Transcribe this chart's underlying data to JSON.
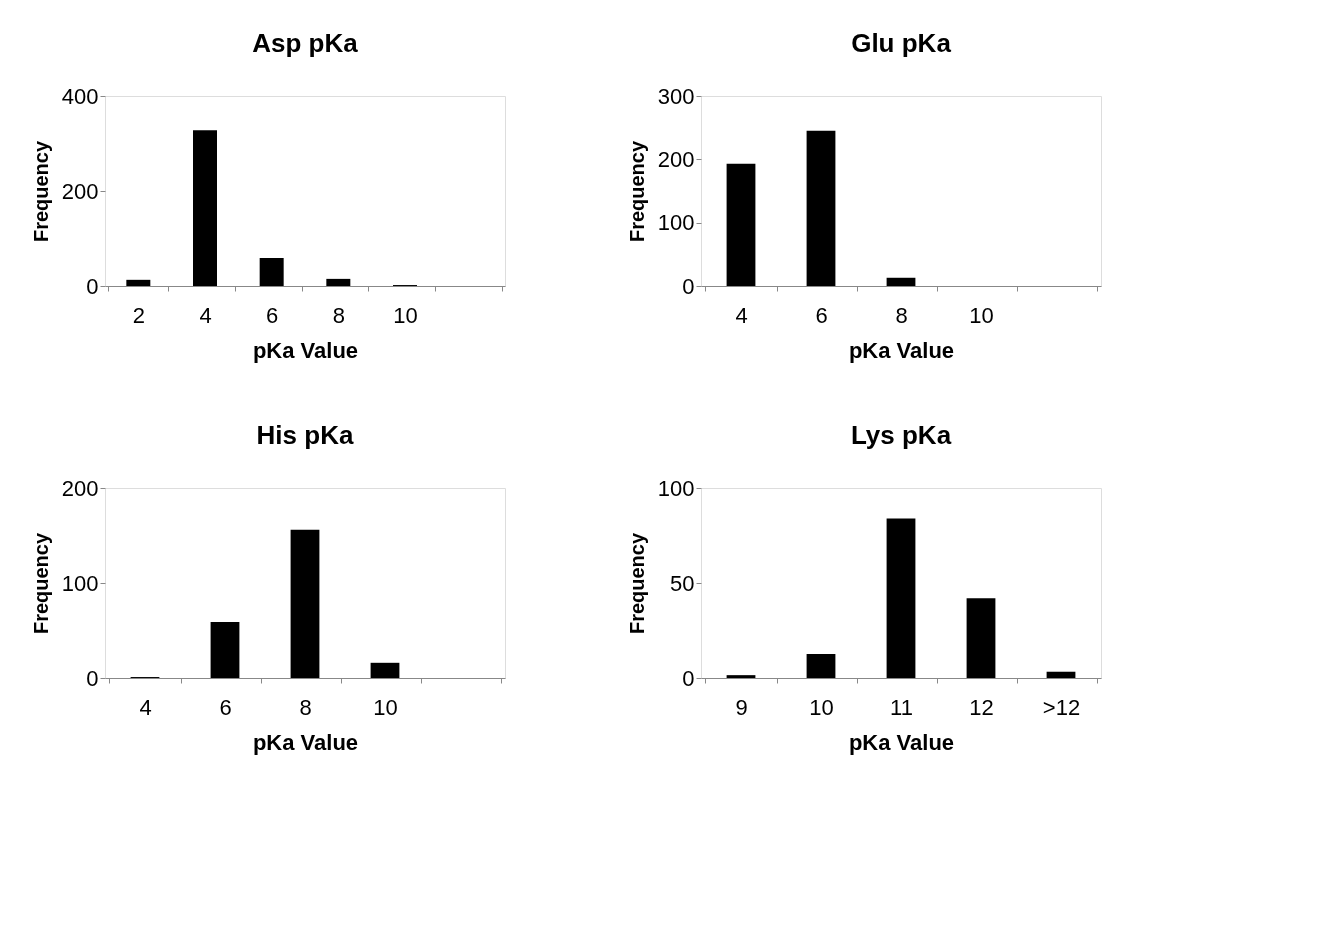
{
  "chart_data": [
    {
      "type": "bar",
      "title": "Asp pKa",
      "xlabel": "pKa Value",
      "ylabel": "Frequency",
      "categories": [
        "2",
        "4",
        "6",
        "8",
        "10",
        null
      ],
      "values": [
        13,
        328,
        59,
        15,
        2,
        0
      ],
      "color": "#000000",
      "ylim": [
        0,
        400
      ],
      "yticks": [
        0,
        200,
        400
      ],
      "grid": false
    },
    {
      "type": "bar",
      "title": "Glu pKa",
      "xlabel": "pKa Value",
      "ylabel": "Frequency",
      "categories": [
        "4",
        "6",
        "8",
        "10",
        null
      ],
      "values": [
        193,
        245,
        13,
        0,
        0
      ],
      "color": "#000000",
      "ylim": [
        0,
        300
      ],
      "yticks": [
        0,
        100,
        200,
        300
      ],
      "grid": false
    },
    {
      "type": "bar",
      "title": "His pKa",
      "xlabel": "pKa Value",
      "ylabel": "Frequency",
      "categories": [
        "4",
        "6",
        "8",
        "10",
        null
      ],
      "values": [
        1,
        59,
        156,
        16,
        0
      ],
      "color": "#000000",
      "ylim": [
        0,
        200
      ],
      "yticks": [
        0,
        100,
        200
      ],
      "grid": false
    },
    {
      "type": "bar",
      "title": "Lys pKa",
      "xlabel": "pKa Value",
      "ylabel": "Frequency",
      "categories": [
        "9",
        "10",
        "11",
        "12",
        ">12"
      ],
      "values": [
        1.5,
        12.6,
        84,
        42,
        3.3
      ],
      "color": "#000000",
      "ylim": [
        0,
        100
      ],
      "yticks": [
        0,
        50,
        100
      ],
      "grid": false
    }
  ]
}
